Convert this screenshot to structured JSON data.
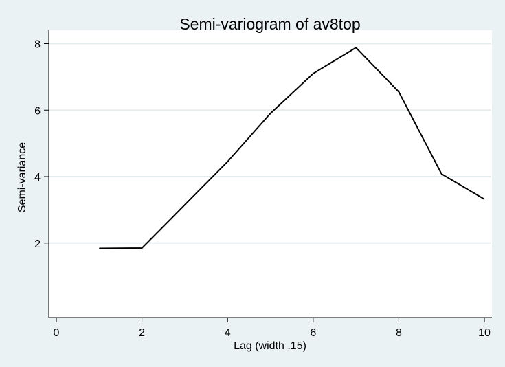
{
  "chart_data": {
    "type": "line",
    "title": "Semi-variogram of av8top",
    "xlabel": "Lag (width .15)",
    "ylabel": "Semi-variance",
    "xlim": [
      0,
      10
    ],
    "ylim": [
      0,
      8
    ],
    "x_ticks": [
      "0",
      "2",
      "4",
      "6",
      "8",
      "10"
    ],
    "y_ticks": [
      "2",
      "4",
      "6",
      "8"
    ],
    "grid": "horizontal",
    "legend": "none",
    "series": [
      {
        "x": [
          1,
          2,
          3,
          4,
          5,
          6,
          7,
          8,
          9,
          10
        ],
        "values": [
          1.84,
          1.85,
          3.15,
          4.45,
          5.9,
          7.1,
          7.88,
          6.55,
          4.08,
          3.32
        ]
      }
    ]
  },
  "colors": {
    "background": "#eaf2f3",
    "plot_area": "#ffffff",
    "grid": "#e6ecee",
    "line": "#000000"
  }
}
